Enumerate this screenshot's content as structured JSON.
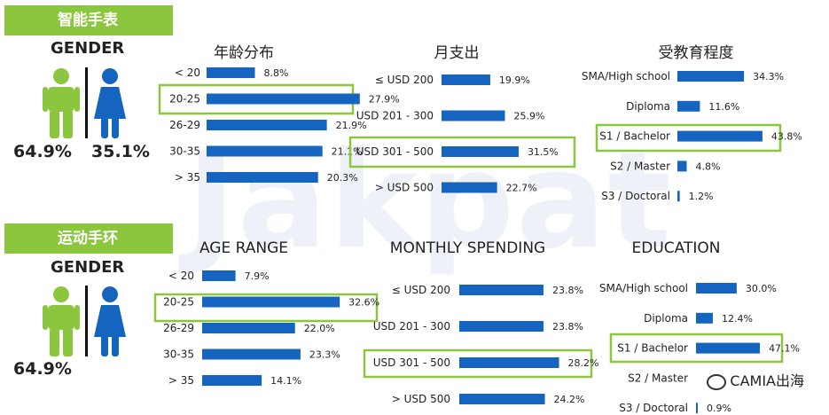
{
  "colors": {
    "bar": "#1464c0",
    "accent": "#8cc63f",
    "male": "#8cc63f",
    "female": "#1464c0"
  },
  "watermark": "Jakpat",
  "footer": {
    "text": "CAMIA出海",
    "icon": "wechat-icon"
  },
  "sections": [
    {
      "tag": "智能手表",
      "gender": {
        "title": "GENDER",
        "male_pct": "64.9%",
        "female_pct": "35.1%"
      }
    },
    {
      "tag": "运动手环",
      "gender": {
        "title": "GENDER",
        "male_pct": "64.9%",
        "female_pct": ""
      }
    }
  ],
  "chart_data": [
    {
      "type": "bar",
      "orientation": "horizontal",
      "title": "年龄分布",
      "categories": [
        "< 20",
        "20-25",
        "26-29",
        "30-35",
        "> 35"
      ],
      "values": [
        8.8,
        27.9,
        21.9,
        21.1,
        20.3
      ],
      "labels": [
        "8.8%",
        "27.9%",
        "21.9%",
        "21.1%",
        "20.3%"
      ],
      "highlighted": "20-25"
    },
    {
      "type": "bar",
      "orientation": "horizontal",
      "title": "月支出",
      "categories": [
        "≤ USD 200",
        "USD 201 - 300",
        "USD 301 - 500",
        "> USD 500"
      ],
      "values": [
        19.9,
        25.9,
        31.5,
        22.7
      ],
      "labels": [
        "19.9%",
        "25.9%",
        "31.5%",
        "22.7%"
      ],
      "highlighted": "USD 301 - 500"
    },
    {
      "type": "bar",
      "orientation": "horizontal",
      "title": "受教育程度",
      "categories": [
        "SMA/High school",
        "Diploma",
        "S1 / Bachelor",
        "S2 / Master",
        "S3 / Doctoral"
      ],
      "values": [
        34.3,
        11.6,
        43.8,
        4.8,
        1.2
      ],
      "labels": [
        "34.3%",
        "11.6%",
        "43.8%",
        "4.8%",
        "1.2%"
      ],
      "highlighted": "S1 / Bachelor"
    },
    {
      "type": "bar",
      "orientation": "horizontal",
      "title": "AGE RANGE",
      "categories": [
        "< 20",
        "20-25",
        "26-29",
        "30-35",
        "> 35"
      ],
      "values": [
        7.9,
        32.6,
        22.0,
        23.3,
        14.1
      ],
      "labels": [
        "7.9%",
        "32.6%",
        "22.0%",
        "23.3%",
        "14.1%"
      ],
      "highlighted": "20-25"
    },
    {
      "type": "bar",
      "orientation": "horizontal",
      "title": "MONTHLY SPENDING",
      "categories": [
        "≤ USD 200",
        "USD 201 - 300",
        "USD 301 - 500",
        "> USD 500"
      ],
      "values": [
        23.8,
        23.8,
        28.2,
        24.2
      ],
      "labels": [
        "23.8%",
        "23.8%",
        "28.2%",
        "24.2%"
      ],
      "highlighted": "USD 301 - 500"
    },
    {
      "type": "bar",
      "orientation": "horizontal",
      "title": "EDUCATION",
      "categories": [
        "SMA/High school",
        "Diploma",
        "S1 / Bachelor",
        "S2 / Master",
        "S3 / Doctoral"
      ],
      "values": [
        30.0,
        12.4,
        47.1,
        null,
        0.9
      ],
      "labels": [
        "30.0%",
        "12.4%",
        "47.1%",
        "",
        "0.9%"
      ],
      "highlighted": "S1 / Bachelor"
    }
  ]
}
